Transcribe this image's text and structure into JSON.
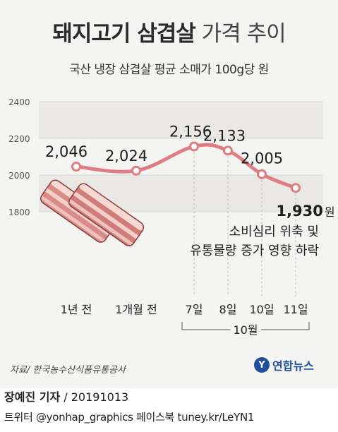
{
  "header": {
    "title_strong": "돼지고기 삼겹살",
    "title_light": "가격 추이",
    "subtitle": "국산 냉장 삼겹살 평균 소매가 100g당 원"
  },
  "chart_data": {
    "type": "line",
    "categories": [
      "1년 전",
      "1개월 전",
      "7일",
      "8일",
      "10일",
      "11일"
    ],
    "series": [
      {
        "values": [
          2046,
          2024,
          2156,
          2133,
          2005,
          1930
        ]
      }
    ],
    "data_labels": [
      "2,046",
      "2,024",
      "2,156",
      "2,133",
      "2,005",
      "1,930"
    ],
    "last_unit": "원",
    "yticks": [
      "2400",
      "2200",
      "2000",
      "1800"
    ],
    "ylim": [
      1800,
      2400
    ],
    "group_label": "10월",
    "annotation": [
      "소비심리 위축 및",
      "유통물량 증가 영향 하락"
    ],
    "colors": {
      "line": "#e07c82",
      "point": "#ffffff",
      "band": "#e9e8e4"
    }
  },
  "footer": {
    "source": "자료/ 한국농수산식품유통공사",
    "logo_text": "연합뉴스",
    "byline_name": "장예진 기자",
    "byline_date": " / 20191013",
    "social": "트위터 @yonhap_graphics  페이스북 tuney.kr/LeYN1"
  }
}
